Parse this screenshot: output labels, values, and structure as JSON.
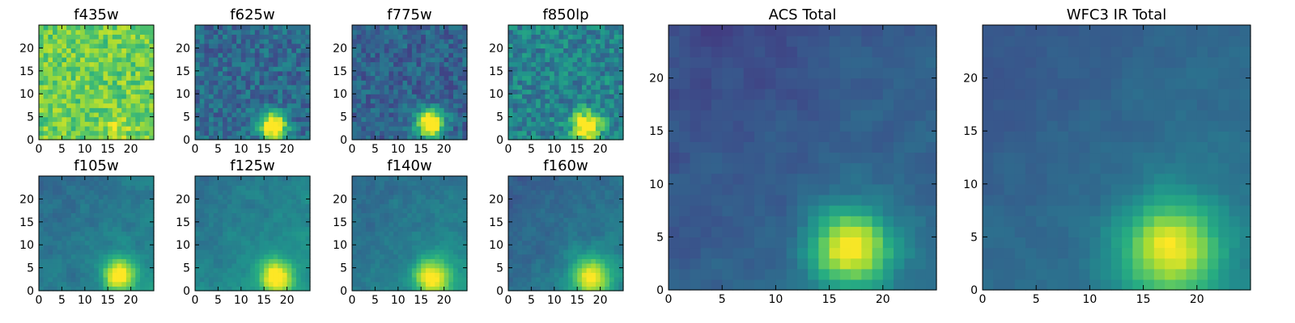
{
  "figure": {
    "background": "#ffffff",
    "colormap": "viridis"
  },
  "chart_data": [
    {
      "type": "heatmap",
      "title": "f435w",
      "size": 25,
      "x_ticks": [
        0,
        5,
        10,
        15,
        20
      ],
      "y_ticks": [
        0,
        5,
        10,
        15,
        20
      ],
      "xlim": [
        0,
        25
      ],
      "ylim": [
        0,
        25
      ],
      "source_center": [
        17,
        3
      ],
      "source_sigma": 2.2,
      "source_peak": 0.12,
      "background_level": 0.78,
      "noise": 0.14
    },
    {
      "type": "heatmap",
      "title": "f625w",
      "size": 25,
      "x_ticks": [
        0,
        5,
        10,
        15,
        20
      ],
      "y_ticks": [
        0,
        5,
        10,
        15,
        20
      ],
      "xlim": [
        0,
        25
      ],
      "ylim": [
        0,
        25
      ],
      "source_center": [
        17,
        3
      ],
      "source_sigma": 2.0,
      "source_peak": 0.95,
      "background_level": 0.35,
      "noise": 0.13
    },
    {
      "type": "heatmap",
      "title": "f775w",
      "size": 25,
      "x_ticks": [
        0,
        5,
        10,
        15,
        20
      ],
      "y_ticks": [
        0,
        5,
        10,
        15,
        20
      ],
      "xlim": [
        0,
        25
      ],
      "ylim": [
        0,
        25
      ],
      "source_center": [
        17,
        3.5
      ],
      "source_sigma": 2.1,
      "source_peak": 0.9,
      "background_level": 0.32,
      "noise": 0.12
    },
    {
      "type": "heatmap",
      "title": "f850lp",
      "size": 25,
      "x_ticks": [
        0,
        5,
        10,
        15,
        20
      ],
      "y_ticks": [
        0,
        5,
        10,
        15,
        20
      ],
      "xlim": [
        0,
        25
      ],
      "ylim": [
        0,
        25
      ],
      "source_center": [
        17,
        3
      ],
      "source_sigma": 2.2,
      "source_peak": 0.75,
      "background_level": 0.45,
      "noise": 0.15
    },
    {
      "type": "heatmap",
      "title": "f105w",
      "size": 25,
      "x_ticks": [
        0,
        5,
        10,
        15,
        20
      ],
      "y_ticks": [
        0,
        5,
        10,
        15,
        20
      ],
      "xlim": [
        0,
        25
      ],
      "ylim": [
        0,
        25
      ],
      "source_center": [
        17.5,
        3.5
      ],
      "source_sigma": 2.4,
      "source_peak": 0.65,
      "background_level": 0.42,
      "noise": 0.1
    },
    {
      "type": "heatmap",
      "title": "f125w",
      "size": 25,
      "x_ticks": [
        0,
        5,
        10,
        15,
        20
      ],
      "y_ticks": [
        0,
        5,
        10,
        15,
        20
      ],
      "xlim": [
        0,
        25
      ],
      "ylim": [
        0,
        25
      ],
      "source_center": [
        17.5,
        3
      ],
      "source_sigma": 2.6,
      "source_peak": 0.6,
      "background_level": 0.45,
      "noise": 0.1
    },
    {
      "type": "heatmap",
      "title": "f140w",
      "size": 25,
      "x_ticks": [
        0,
        5,
        10,
        15,
        20
      ],
      "y_ticks": [
        0,
        5,
        10,
        15,
        20
      ],
      "xlim": [
        0,
        25
      ],
      "ylim": [
        0,
        25
      ],
      "source_center": [
        17.5,
        3
      ],
      "source_sigma": 2.8,
      "source_peak": 0.6,
      "background_level": 0.42,
      "noise": 0.1
    },
    {
      "type": "heatmap",
      "title": "f160w",
      "size": 25,
      "x_ticks": [
        0,
        5,
        10,
        15,
        20
      ],
      "y_ticks": [
        0,
        5,
        10,
        15,
        20
      ],
      "xlim": [
        0,
        25
      ],
      "ylim": [
        0,
        25
      ],
      "source_center": [
        18,
        3
      ],
      "source_sigma": 3.0,
      "source_peak": 0.6,
      "background_level": 0.38,
      "noise": 0.1
    },
    {
      "type": "heatmap",
      "title": "ACS Total",
      "size": 25,
      "x_ticks": [
        0,
        5,
        10,
        15,
        20
      ],
      "y_ticks": [
        0,
        5,
        10,
        15,
        20
      ],
      "xlim": [
        0,
        25
      ],
      "ylim": [
        0,
        25
      ],
      "source_center": [
        17,
        4
      ],
      "source_sigma": 2.6,
      "source_peak": 0.7,
      "background_level": 0.3,
      "noise": 0.08
    },
    {
      "type": "heatmap",
      "title": "WFC3 IR Total",
      "size": 25,
      "x_ticks": [
        0,
        5,
        10,
        15,
        20
      ],
      "y_ticks": [
        0,
        5,
        10,
        15,
        20
      ],
      "xlim": [
        0,
        25
      ],
      "ylim": [
        0,
        25
      ],
      "source_center": [
        17.5,
        4
      ],
      "source_sigma": 3.2,
      "source_peak": 0.6,
      "background_level": 0.35,
      "noise": 0.06
    }
  ]
}
